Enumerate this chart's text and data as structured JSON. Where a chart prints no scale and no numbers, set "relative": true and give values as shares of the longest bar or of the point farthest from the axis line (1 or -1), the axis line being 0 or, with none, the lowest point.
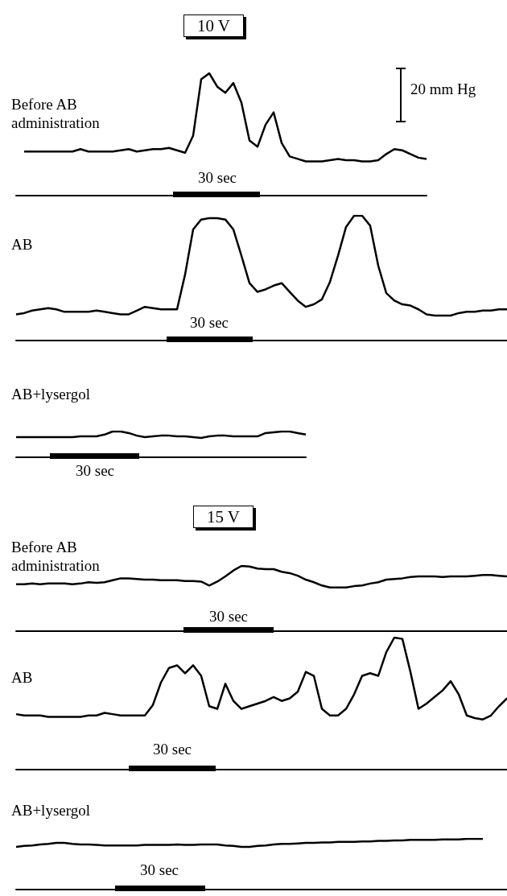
{
  "chart_data": [
    {
      "type": "line",
      "title": "Before AB administration",
      "subtitle": "10 V",
      "relative": true,
      "marker": "none",
      "color": "#000000",
      "annotations": [
        "30 sec",
        "20 mm Hg"
      ],
      "categories": [
        null,
        null,
        null,
        null,
        null,
        null,
        null,
        null,
        null,
        null,
        null,
        null,
        null,
        null,
        null,
        null,
        null,
        null,
        null,
        null,
        null,
        null,
        null,
        null,
        null,
        null,
        null,
        null,
        null,
        null,
        null,
        null,
        null,
        null,
        null,
        null,
        null,
        null,
        null,
        null,
        null,
        null,
        null,
        null,
        null,
        null,
        null,
        null,
        null,
        null,
        null,
        null
      ],
      "values": [
        null,
        0.36,
        0.36,
        0.36,
        0.36,
        0.36,
        0.36,
        0.36,
        0.38,
        0.36,
        0.36,
        0.36,
        0.36,
        0.37,
        0.38,
        0.36,
        0.37,
        0.38,
        0.38,
        0.39,
        0.37,
        0.35,
        0.49,
        0.95,
        1,
        0.89,
        0.84,
        0.92,
        0.76,
        0.45,
        0.4,
        0.58,
        0.68,
        0.43,
        0.32,
        0.3,
        0.28,
        0.28,
        0.28,
        0.29,
        0.3,
        0.29,
        0.29,
        0.28,
        0.28,
        0.29,
        0.34,
        0.38,
        0.37,
        0.34,
        0.31,
        0.3
      ]
    },
    {
      "type": "line",
      "title": "AB",
      "relative": true,
      "marker": "none",
      "color": "#000000",
      "annotations": [
        "30 sec"
      ],
      "categories": [
        null,
        null,
        null,
        null,
        null,
        null,
        null,
        null,
        null,
        null,
        null,
        null,
        null,
        null,
        null,
        null,
        null,
        null,
        null,
        null,
        null,
        null,
        null,
        null,
        null,
        null,
        null,
        null,
        null,
        null,
        null,
        null,
        null,
        null,
        null,
        null,
        null,
        null,
        null,
        null,
        null,
        null,
        null,
        null,
        null,
        null,
        null,
        null,
        null,
        null,
        null,
        null,
        null,
        null,
        null,
        null,
        null,
        null,
        null,
        null,
        null,
        null
      ],
      "values": [
        0.21,
        0.22,
        0.24,
        0.25,
        0.26,
        0.25,
        0.23,
        0.23,
        0.23,
        0.23,
        0.24,
        0.23,
        0.22,
        0.21,
        0.21,
        0.24,
        0.27,
        0.26,
        0.25,
        0.25,
        0.25,
        0.53,
        0.89,
        0.97,
        0.98,
        0.98,
        0.97,
        0.89,
        0.68,
        0.46,
        0.39,
        0.41,
        0.44,
        0.46,
        0.39,
        0.32,
        0.27,
        0.29,
        0.33,
        0.47,
        0.68,
        0.91,
        1,
        1,
        0.92,
        0.6,
        0.38,
        0.32,
        0.29,
        0.28,
        0.25,
        0.21,
        0.2,
        0.2,
        0.2,
        0.22,
        0.23,
        0.23,
        0.24,
        0.24,
        0.25,
        0.25
      ]
    },
    {
      "type": "line",
      "title": "AB+lysergol",
      "relative": true,
      "marker": "none",
      "color": "#000000",
      "annotations": [
        "30 sec"
      ],
      "categories": [
        null,
        null,
        null,
        null,
        null,
        null,
        null,
        null,
        null,
        null,
        null,
        null,
        null,
        null,
        null,
        null,
        null,
        null,
        null,
        null,
        null,
        null,
        null,
        null,
        null,
        null,
        null,
        null,
        null,
        null,
        null,
        null,
        null,
        null,
        null,
        null,
        null
      ],
      "values": [
        0.78,
        0.78,
        0.78,
        0.78,
        0.78,
        0.78,
        0.78,
        0.78,
        0.81,
        0.81,
        0.81,
        0.88,
        1,
        1,
        0.94,
        0.84,
        0.78,
        0.81,
        0.84,
        0.84,
        0.81,
        0.81,
        0.78,
        0.75,
        0.81,
        0.84,
        0.84,
        0.81,
        0.81,
        0.81,
        0.81,
        0.94,
        0.97,
        1,
        1,
        0.94,
        0.88
      ]
    },
    {
      "type": "line",
      "title": "Before AB administration",
      "subtitle": "15 V",
      "relative": true,
      "marker": "none",
      "color": "#000000",
      "annotations": [
        "30 sec"
      ],
      "categories": [
        null,
        null,
        null,
        null,
        null,
        null,
        null,
        null,
        null,
        null,
        null,
        null,
        null,
        null,
        null,
        null,
        null,
        null,
        null,
        null,
        null,
        null,
        null,
        null,
        null,
        null,
        null,
        null,
        null,
        null,
        null,
        null,
        null,
        null,
        null,
        null,
        null,
        null,
        null,
        null,
        null,
        null,
        null,
        null,
        null,
        null,
        null,
        null,
        null,
        null,
        null,
        null,
        null,
        null,
        null,
        null,
        null,
        null,
        null,
        null,
        null,
        null
      ],
      "values": [
        0.72,
        0.72,
        0.73,
        0.72,
        0.73,
        0.73,
        0.73,
        0.72,
        0.73,
        0.75,
        0.74,
        0.75,
        0.78,
        0.81,
        0.81,
        0.8,
        0.79,
        0.79,
        0.78,
        0.78,
        0.78,
        0.77,
        0.77,
        0.76,
        0.7,
        0.76,
        0.84,
        0.93,
        1,
        0.99,
        0.96,
        0.95,
        0.95,
        0.91,
        0.89,
        0.85,
        0.79,
        0.75,
        0.7,
        0.67,
        0.67,
        0.67,
        0.69,
        0.7,
        0.73,
        0.75,
        0.79,
        0.8,
        0.81,
        0.83,
        0.84,
        0.84,
        0.84,
        0.83,
        0.84,
        0.84,
        0.84,
        0.85,
        0.86,
        0.86,
        0.85,
        0.84
      ]
    },
    {
      "type": "line",
      "title": "AB",
      "relative": true,
      "marker": "none",
      "color": "#000000",
      "annotations": [
        "30 sec"
      ],
      "categories": [
        null,
        null,
        null,
        null,
        null,
        null,
        null,
        null,
        null,
        null,
        null,
        null,
        null,
        null,
        null,
        null,
        null,
        null,
        null,
        null,
        null,
        null,
        null,
        null,
        null,
        null,
        null,
        null,
        null,
        null,
        null,
        null,
        null,
        null,
        null,
        null,
        null,
        null,
        null,
        null,
        null,
        null,
        null,
        null,
        null,
        null,
        null,
        null,
        null,
        null,
        null,
        null,
        null,
        null,
        null,
        null,
        null,
        null,
        null,
        null,
        null,
        null
      ],
      "values": [
        0.42,
        0.41,
        0.41,
        0.41,
        0.4,
        0.4,
        0.4,
        0.4,
        0.4,
        0.41,
        0.41,
        0.43,
        0.42,
        0.41,
        0.41,
        0.41,
        0.41,
        0.49,
        0.66,
        0.77,
        0.79,
        0.73,
        0.79,
        0.71,
        0.48,
        0.46,
        0.65,
        0.52,
        0.46,
        0.48,
        0.5,
        0.52,
        0.55,
        0.52,
        0.54,
        0.59,
        0.74,
        0.71,
        0.46,
        0.41,
        0.41,
        0.46,
        0.57,
        0.71,
        0.73,
        0.71,
        0.89,
        1,
        0.99,
        0.74,
        0.46,
        0.5,
        0.55,
        0.6,
        0.67,
        0.57,
        0.41,
        0.39,
        0.38,
        0.41,
        0.48,
        0.54
      ]
    },
    {
      "type": "line",
      "title": "AB+lysergol",
      "relative": true,
      "marker": "none",
      "color": "#000000",
      "annotations": [
        "30 sec"
      ],
      "categories": [
        null,
        null,
        null,
        null,
        null,
        null,
        null,
        null,
        null,
        null,
        null,
        null,
        null,
        null,
        null,
        null,
        null,
        null,
        null,
        null,
        null,
        null,
        null,
        null,
        null,
        null,
        null,
        null,
        null,
        null,
        null,
        null,
        null,
        null,
        null,
        null,
        null,
        null,
        null,
        null,
        null,
        null,
        null,
        null,
        null,
        null,
        null,
        null,
        null,
        null,
        null,
        null,
        null,
        null,
        null,
        null,
        null,
        null,
        null,
        null,
        null,
        null
      ],
      "values": [
        0.84,
        0.86,
        0.87,
        0.89,
        0.9,
        0.92,
        0.92,
        0.9,
        0.89,
        0.89,
        0.88,
        0.87,
        0.87,
        0.87,
        0.87,
        0.87,
        0.88,
        0.88,
        0.88,
        0.88,
        0.89,
        0.88,
        0.88,
        0.89,
        0.89,
        0.89,
        0.87,
        0.86,
        0.84,
        0.84,
        0.86,
        0.87,
        0.89,
        0.9,
        0.9,
        0.91,
        0.92,
        0.92,
        0.93,
        0.93,
        0.94,
        0.94,
        0.94,
        0.95,
        0.95,
        0.96,
        0.96,
        0.97,
        0.97,
        0.98,
        0.98,
        0.98,
        0.98,
        0.99,
        0.99,
        0.99,
        1,
        1,
        1,
        null,
        null,
        null
      ]
    }
  ]
}
